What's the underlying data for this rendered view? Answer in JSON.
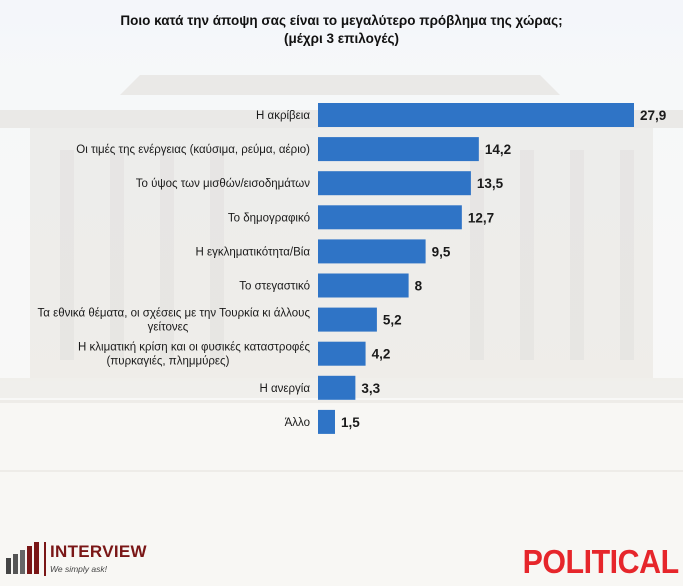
{
  "header": {
    "title_line1": "Ποιο κατά την άποψη σας είναι το μεγαλύτερο πρόβλημα της χώρας;",
    "title_line2": "(μέχρι 3 επιλογές)"
  },
  "colors": {
    "bar": "#2f74c6",
    "label": "#1a1a1a",
    "interview_brand": "#7a1616",
    "political_brand": "#e6262b"
  },
  "chart_data": {
    "type": "bar",
    "orientation": "horizontal",
    "categories": [
      [
        "Η ακρίβεια"
      ],
      [
        "Οι τιμές της ενέργειας (καύσιμα, ρεύμα, αέριο)"
      ],
      [
        "Το ύψος των μισθών/εισοδημάτων"
      ],
      [
        "Το δημογραφικό"
      ],
      [
        "Η εγκληματικότητα/Βία"
      ],
      [
        "Το στεγαστικό"
      ],
      [
        "Τα εθνικά θέματα, οι σχέσεις με την Τουρκία κι άλλους",
        "γείτονες"
      ],
      [
        "Η κλιματική κρίση και οι φυσικές καταστροφές",
        "(πυρκαγιές, πλημμύρες)"
      ],
      [
        "Η ανεργία"
      ],
      [
        "Άλλο"
      ]
    ],
    "values": [
      27.9,
      14.2,
      13.5,
      12.7,
      9.5,
      8,
      5.2,
      4.2,
      3.3,
      1.5
    ],
    "value_labels": [
      "27,9",
      "14,2",
      "13,5",
      "12,7",
      "9,5",
      "8",
      "5,2",
      "4,2",
      "3,3",
      "1,5"
    ],
    "xlim": [
      0,
      27.9
    ],
    "grid": false,
    "legend": "none"
  },
  "logos": {
    "interview_name": "INTERVIEW",
    "interview_tagline": "We simply ask!",
    "political_name": "POLITICAL"
  }
}
